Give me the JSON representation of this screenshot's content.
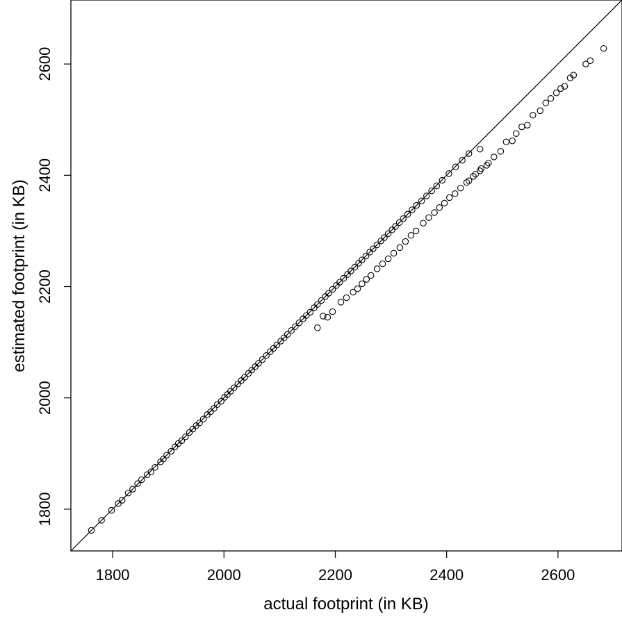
{
  "chart_data": {
    "type": "scatter",
    "title": "",
    "xlabel": "actual footprint (in KB)",
    "ylabel": "estimated footprint (in KB)",
    "xlim": [
      1725,
      2715
    ],
    "ylim": [
      1725,
      2715
    ],
    "x_ticks": [
      1800,
      2000,
      2200,
      2400,
      2600
    ],
    "y_ticks": [
      1800,
      2000,
      2200,
      2400,
      2600
    ],
    "x_tick_labels": [
      "1800",
      "2000",
      "2200",
      "2400",
      "2600"
    ],
    "y_tick_labels": [
      "1800",
      "2000",
      "2200",
      "2400",
      "2600"
    ],
    "grid": false,
    "reference_line": "y = x",
    "series": [
      {
        "marker": "open-circle",
        "points": [
          [
            1762,
            1762
          ],
          [
            1780,
            1780
          ],
          [
            1798,
            1798
          ],
          [
            1810,
            1810
          ],
          [
            1817,
            1816
          ],
          [
            1828,
            1829
          ],
          [
            1836,
            1836
          ],
          [
            1845,
            1846
          ],
          [
            1852,
            1853
          ],
          [
            1862,
            1862
          ],
          [
            1869,
            1867
          ],
          [
            1876,
            1875
          ],
          [
            1886,
            1885
          ],
          [
            1891,
            1890
          ],
          [
            1897,
            1897
          ],
          [
            1905,
            1904
          ],
          [
            1912,
            1912
          ],
          [
            1918,
            1918
          ],
          [
            1924,
            1923
          ],
          [
            1931,
            1930
          ],
          [
            1938,
            1938
          ],
          [
            1944,
            1944
          ],
          [
            1950,
            1950
          ],
          [
            1956,
            1955
          ],
          [
            1963,
            1962
          ],
          [
            1970,
            1970
          ],
          [
            1976,
            1975
          ],
          [
            1982,
            1981
          ],
          [
            1988,
            1988
          ],
          [
            1995,
            1994
          ],
          [
            2001,
            2001
          ],
          [
            2006,
            2006
          ],
          [
            2012,
            2012
          ],
          [
            2018,
            2018
          ],
          [
            2025,
            2025
          ],
          [
            2031,
            2031
          ],
          [
            2037,
            2037
          ],
          [
            2044,
            2044
          ],
          [
            2050,
            2050
          ],
          [
            2056,
            2056
          ],
          [
            2062,
            2062
          ],
          [
            2069,
            2069
          ],
          [
            2076,
            2076
          ],
          [
            2083,
            2083
          ],
          [
            2089,
            2089
          ],
          [
            2095,
            2095
          ],
          [
            2102,
            2102
          ],
          [
            2108,
            2108
          ],
          [
            2114,
            2114
          ],
          [
            2121,
            2121
          ],
          [
            2128,
            2128
          ],
          [
            2135,
            2135
          ],
          [
            2142,
            2142
          ],
          [
            2148,
            2148
          ],
          [
            2155,
            2154
          ],
          [
            2162,
            2162
          ],
          [
            2168,
            2168
          ],
          [
            2175,
            2175
          ],
          [
            2182,
            2182
          ],
          [
            2188,
            2188
          ],
          [
            2195,
            2195
          ],
          [
            2202,
            2202
          ],
          [
            2208,
            2208
          ],
          [
            2215,
            2215
          ],
          [
            2222,
            2222
          ],
          [
            2228,
            2228
          ],
          [
            2235,
            2235
          ],
          [
            2242,
            2242
          ],
          [
            2248,
            2248
          ],
          [
            2255,
            2255
          ],
          [
            2262,
            2262
          ],
          [
            2268,
            2268
          ],
          [
            2275,
            2275
          ],
          [
            2282,
            2282
          ],
          [
            2288,
            2288
          ],
          [
            2295,
            2295
          ],
          [
            2302,
            2302
          ],
          [
            2308,
            2308
          ],
          [
            2315,
            2315
          ],
          [
            2322,
            2322
          ],
          [
            2330,
            2330
          ],
          [
            2338,
            2338
          ],
          [
            2346,
            2346
          ],
          [
            2355,
            2354
          ],
          [
            2364,
            2363
          ],
          [
            2373,
            2372
          ],
          [
            2382,
            2381
          ],
          [
            2392,
            2391
          ],
          [
            2404,
            2403
          ],
          [
            2416,
            2415
          ],
          [
            2428,
            2427
          ],
          [
            2440,
            2439
          ],
          [
            2168,
            2126
          ],
          [
            2178,
            2147
          ],
          [
            2186,
            2145
          ],
          [
            2195,
            2155
          ],
          [
            2210,
            2172
          ],
          [
            2220,
            2180
          ],
          [
            2232,
            2190
          ],
          [
            2240,
            2196
          ],
          [
            2248,
            2205
          ],
          [
            2256,
            2213
          ],
          [
            2264,
            2220
          ],
          [
            2275,
            2232
          ],
          [
            2285,
            2241
          ],
          [
            2295,
            2250
          ],
          [
            2305,
            2260
          ],
          [
            2316,
            2270
          ],
          [
            2326,
            2281
          ],
          [
            2336,
            2292
          ],
          [
            2345,
            2300
          ],
          [
            2358,
            2314
          ],
          [
            2368,
            2324
          ],
          [
            2378,
            2333
          ],
          [
            2387,
            2342
          ],
          [
            2396,
            2350
          ],
          [
            2405,
            2360
          ],
          [
            2415,
            2367
          ],
          [
            2425,
            2377
          ],
          [
            2436,
            2387
          ],
          [
            2448,
            2398
          ],
          [
            2460,
            2408
          ],
          [
            2472,
            2418
          ],
          [
            2440,
            2390
          ],
          [
            2452,
            2402
          ],
          [
            2462,
            2412
          ],
          [
            2475,
            2422
          ],
          [
            2460,
            2447
          ],
          [
            2485,
            2433
          ],
          [
            2497,
            2443
          ],
          [
            2507,
            2460
          ],
          [
            2518,
            2462
          ],
          [
            2525,
            2475
          ],
          [
            2535,
            2487
          ],
          [
            2545,
            2490
          ],
          [
            2555,
            2508
          ],
          [
            2568,
            2516
          ],
          [
            2578,
            2530
          ],
          [
            2587,
            2538
          ],
          [
            2597,
            2548
          ],
          [
            2605,
            2556
          ],
          [
            2612,
            2560
          ],
          [
            2622,
            2575
          ],
          [
            2628,
            2580
          ],
          [
            2650,
            2600
          ],
          [
            2658,
            2606
          ],
          [
            2682,
            2628
          ]
        ]
      }
    ]
  }
}
